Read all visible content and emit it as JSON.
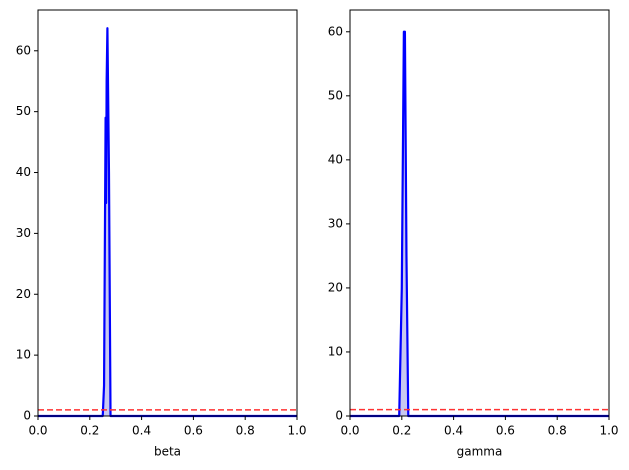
{
  "chart_data": [
    {
      "type": "line",
      "xlabel": "beta",
      "x": [
        0,
        0.25,
        0.255,
        0.261,
        0.263,
        0.265,
        0.268,
        0.274,
        0.28,
        1
      ],
      "series": [
        {
          "color": "#0000ff",
          "fill": "#c8c8f0",
          "values": [
            0,
            0,
            5,
            49,
            35,
            55,
            63.7,
            40,
            0,
            0
          ]
        }
      ],
      "reference_line": {
        "value": 1,
        "color": "#ff3333",
        "style": "dashed"
      },
      "xlim": [
        0,
        1
      ],
      "ylim": [
        0,
        66.7
      ],
      "xticks": [
        {
          "value": 0,
          "label": "0.0"
        },
        0.2,
        0.4,
        0.6,
        0.8,
        {
          "value": 1,
          "label": "1.0"
        }
      ],
      "yticks": [
        0,
        10,
        20,
        30,
        40,
        50,
        60
      ]
    },
    {
      "type": "line",
      "xlabel": "gamma",
      "x": [
        0,
        0.19,
        0.2,
        0.205,
        0.208,
        0.212,
        0.218,
        0.225,
        1
      ],
      "series": [
        {
          "color": "#0000ff",
          "fill": "#c8c8f0",
          "values": [
            0,
            0,
            20,
            45,
            60,
            60,
            25,
            0,
            0
          ]
        }
      ],
      "reference_line": {
        "value": 1,
        "color": "#ff3333",
        "style": "dashed"
      },
      "xlim": [
        0,
        1
      ],
      "ylim": [
        0,
        63.4
      ],
      "xticks": [
        {
          "value": 0,
          "label": "0.0"
        },
        0.2,
        0.4,
        0.6,
        0.8,
        {
          "value": 1,
          "label": "1.0"
        }
      ],
      "yticks": [
        0,
        10,
        20,
        30,
        40,
        50,
        60
      ]
    }
  ]
}
